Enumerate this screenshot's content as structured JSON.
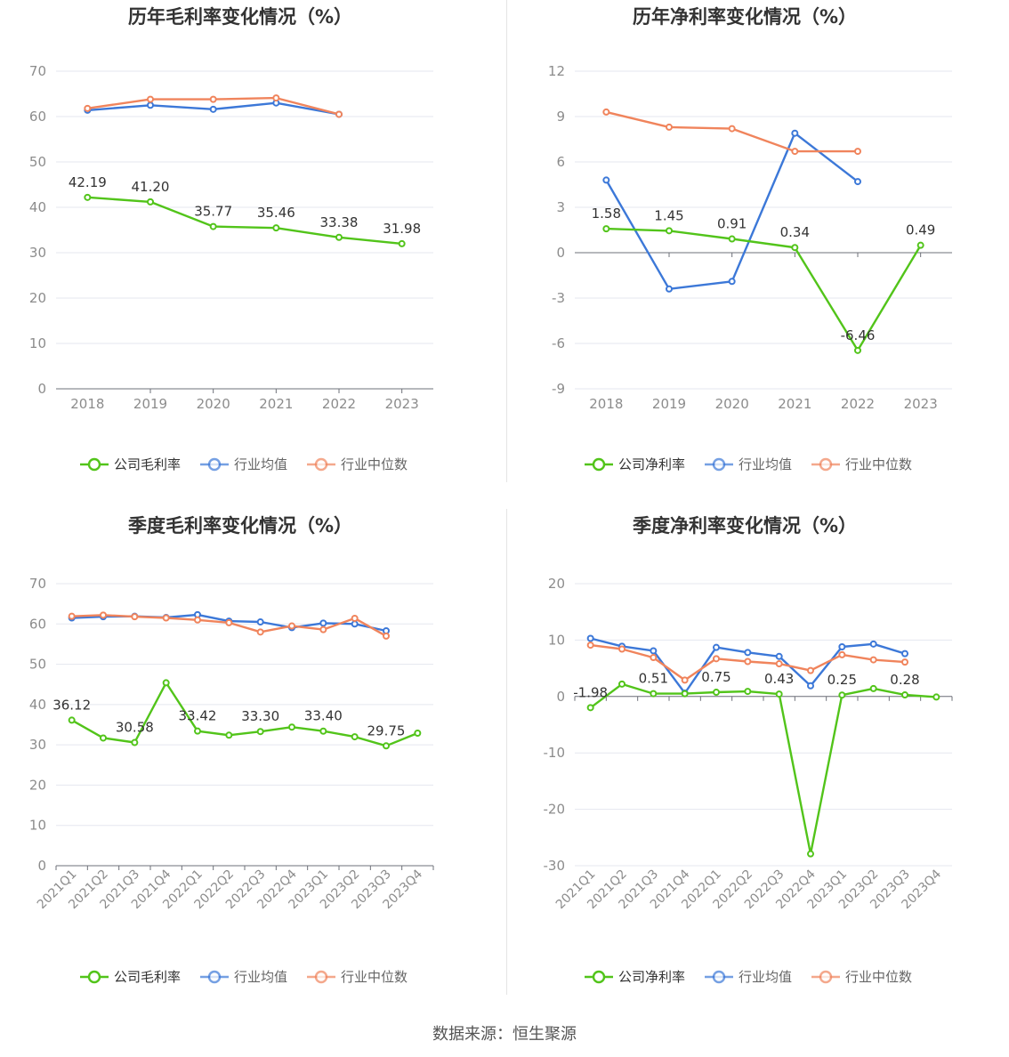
{
  "colors": {
    "company": "#52c41a",
    "avg": "#3c78d8",
    "median": "#f0845c",
    "grid": "#e5e7ef",
    "axis_label": "#8c8c8c",
    "title": "#333333"
  },
  "legend": [
    "公司毛利率",
    "行业均值",
    "行业中位数"
  ],
  "source_text": "数据来源：恒生聚源",
  "chart_data": [
    {
      "type": "line",
      "title": "历年毛利率变化情况（%）",
      "categories": [
        "2018",
        "2019",
        "2020",
        "2021",
        "2022",
        "2023"
      ],
      "ylim": [
        0,
        70
      ],
      "yticks": [
        0,
        10,
        20,
        30,
        40,
        50,
        60,
        70
      ],
      "grid": true,
      "legend_position": "bottom",
      "series": [
        {
          "name": "公司毛利率",
          "values": [
            42.19,
            41.2,
            35.77,
            35.46,
            33.38,
            31.98
          ],
          "labels": [
            "42.19",
            "41.20",
            "35.77",
            "35.46",
            "33.38",
            "31.98"
          ]
        },
        {
          "name": "行业均值",
          "values": [
            61.4,
            62.5,
            61.6,
            63.0,
            60.5,
            null
          ]
        },
        {
          "name": "行业中位数",
          "values": [
            61.8,
            63.8,
            63.8,
            64.1,
            60.5,
            null
          ]
        }
      ]
    },
    {
      "type": "line",
      "title": "历年净利率变化情况（%）",
      "categories": [
        "2018",
        "2019",
        "2020",
        "2021",
        "2022",
        "2023"
      ],
      "ylim": [
        -9,
        12
      ],
      "yticks": [
        -9,
        -6,
        -3,
        0,
        3,
        6,
        9,
        12
      ],
      "grid": true,
      "legend_position": "bottom",
      "series": [
        {
          "name": "公司净利率",
          "values": [
            1.58,
            1.45,
            0.91,
            0.34,
            -6.46,
            0.49
          ],
          "labels": [
            "1.58",
            "1.45",
            "0.91",
            "0.34",
            "-6.46",
            "0.49"
          ]
        },
        {
          "name": "行业均值",
          "values": [
            4.8,
            -2.4,
            -1.9,
            7.9,
            4.7,
            null
          ]
        },
        {
          "name": "行业中位数",
          "values": [
            9.3,
            8.3,
            8.2,
            6.7,
            6.7,
            null
          ]
        }
      ]
    },
    {
      "type": "line",
      "title": "季度毛利率变化情况（%）",
      "categories": [
        "2021Q1",
        "2021Q2",
        "2021Q3",
        "2021Q4",
        "2022Q1",
        "2022Q2",
        "2022Q3",
        "2022Q4",
        "2023Q1",
        "2023Q2",
        "2023Q3",
        "2023Q4"
      ],
      "ylim": [
        0,
        70
      ],
      "yticks": [
        0,
        10,
        20,
        30,
        40,
        50,
        60,
        70
      ],
      "grid": true,
      "legend_position": "bottom",
      "series": [
        {
          "name": "公司毛利率",
          "values": [
            36.12,
            31.7,
            30.58,
            45.4,
            33.42,
            32.4,
            33.3,
            34.4,
            33.4,
            32.0,
            29.75,
            32.9
          ],
          "labels": [
            "36.12",
            "",
            "30.58",
            "",
            "33.42",
            "",
            "33.30",
            "",
            "33.40",
            "",
            "29.75",
            ""
          ]
        },
        {
          "name": "行业均值",
          "values": [
            61.5,
            61.8,
            61.9,
            61.6,
            62.3,
            60.7,
            60.5,
            59.1,
            60.2,
            60.0,
            58.3,
            null
          ]
        },
        {
          "name": "行业中位数",
          "values": [
            61.9,
            62.2,
            61.8,
            61.5,
            61.0,
            60.3,
            58.0,
            59.5,
            58.6,
            61.4,
            57.0,
            null
          ]
        }
      ]
    },
    {
      "type": "line",
      "title": "季度净利率变化情况（%）",
      "categories": [
        "2021Q1",
        "2021Q2",
        "2021Q3",
        "2021Q4",
        "2022Q1",
        "2022Q2",
        "2022Q3",
        "2022Q4",
        "2023Q1",
        "2023Q2",
        "2023Q3",
        "2023Q4"
      ],
      "ylim": [
        -30,
        20
      ],
      "yticks": [
        -30,
        -20,
        -10,
        0,
        10,
        20
      ],
      "grid": true,
      "legend_position": "bottom",
      "series": [
        {
          "name": "公司净利率",
          "values": [
            -1.98,
            2.2,
            0.51,
            0.5,
            0.75,
            0.9,
            0.43,
            -27.9,
            0.25,
            1.4,
            0.28,
            -0.1
          ],
          "labels": [
            "-1.98",
            "",
            "0.51",
            "",
            "0.75",
            "",
            "0.43",
            "",
            "0.25",
            "",
            "0.28",
            ""
          ]
        },
        {
          "name": "行业均值",
          "values": [
            10.3,
            8.9,
            8.1,
            0.6,
            8.7,
            7.8,
            7.1,
            1.9,
            8.8,
            9.3,
            7.6,
            null
          ]
        },
        {
          "name": "行业中位数",
          "values": [
            9.1,
            8.4,
            6.9,
            2.9,
            6.7,
            6.2,
            5.8,
            4.6,
            7.4,
            6.5,
            6.1,
            null
          ]
        }
      ]
    }
  ]
}
